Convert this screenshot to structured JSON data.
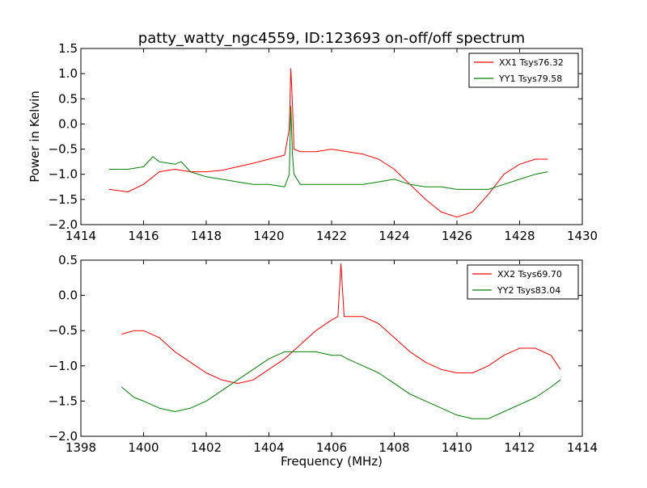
{
  "title": "patty_watty_ngc4559, ID:123693 on-off/off spectrum",
  "ylabel": "Power in Kelvin",
  "xlabel": "Frequency (MHz)",
  "colors": {
    "xx": "#ff0000",
    "yy": "#008000"
  },
  "chart_data": [
    {
      "type": "line",
      "xlim": [
        1414,
        1430
      ],
      "ylim": [
        -2.0,
        1.5
      ],
      "xticks": [
        1414,
        1416,
        1418,
        1420,
        1422,
        1424,
        1426,
        1428,
        1430
      ],
      "yticks": [
        -2.0,
        -1.5,
        -1.0,
        -0.5,
        0.0,
        0.5,
        1.0,
        1.5
      ],
      "xtick_labels": [
        "1414",
        "1416",
        "1418",
        "1420",
        "1422",
        "1424",
        "1426",
        "1428",
        "1430"
      ],
      "ytick_labels": [
        "−2.0",
        "−1.5",
        "−1.0",
        "−0.5",
        "0.0",
        "0.5",
        "1.0",
        "1.5"
      ],
      "legend_position": "top-right",
      "series": [
        {
          "name": "XX1 Tsys76.32",
          "color": "#ff0000",
          "x": [
            1414.9,
            1415.5,
            1416.0,
            1416.5,
            1417.0,
            1417.5,
            1418.0,
            1418.5,
            1419.0,
            1419.5,
            1420.0,
            1420.5,
            1420.65,
            1420.7,
            1420.75,
            1420.8,
            1421.0,
            1421.5,
            1422.0,
            1422.5,
            1423.0,
            1423.5,
            1424.0,
            1424.5,
            1425.0,
            1425.5,
            1426.0,
            1426.5,
            1427.0,
            1427.5,
            1428.0,
            1428.5,
            1428.9
          ],
          "y": [
            -1.3,
            -1.35,
            -1.2,
            -0.95,
            -0.9,
            -0.95,
            -0.95,
            -0.92,
            -0.85,
            -0.78,
            -0.7,
            -0.62,
            -0.1,
            1.1,
            0.4,
            -0.5,
            -0.55,
            -0.55,
            -0.5,
            -0.55,
            -0.6,
            -0.7,
            -0.9,
            -1.2,
            -1.5,
            -1.75,
            -1.85,
            -1.75,
            -1.4,
            -1.0,
            -0.8,
            -0.7,
            -0.7
          ]
        },
        {
          "name": "YY1 Tsys79.58",
          "color": "#008000",
          "x": [
            1414.9,
            1415.5,
            1416.0,
            1416.3,
            1416.5,
            1417.0,
            1417.2,
            1417.5,
            1418.0,
            1418.5,
            1419.0,
            1419.5,
            1420.0,
            1420.5,
            1420.65,
            1420.7,
            1420.75,
            1420.8,
            1421.0,
            1421.5,
            1422.0,
            1422.5,
            1423.0,
            1423.5,
            1424.0,
            1424.5,
            1425.0,
            1425.5,
            1426.0,
            1426.5,
            1427.0,
            1427.5,
            1428.0,
            1428.5,
            1428.9
          ],
          "y": [
            -0.9,
            -0.9,
            -0.85,
            -0.65,
            -0.75,
            -0.8,
            -0.75,
            -0.95,
            -1.05,
            -1.1,
            -1.15,
            -1.2,
            -1.2,
            -1.25,
            -1.0,
            0.35,
            -0.6,
            -1.0,
            -1.2,
            -1.2,
            -1.2,
            -1.2,
            -1.2,
            -1.15,
            -1.1,
            -1.2,
            -1.25,
            -1.25,
            -1.3,
            -1.3,
            -1.3,
            -1.2,
            -1.1,
            -1.0,
            -0.95
          ]
        }
      ]
    },
    {
      "type": "line",
      "xlim": [
        1398,
        1414
      ],
      "ylim": [
        -2.0,
        0.5
      ],
      "xticks": [
        1398,
        1400,
        1402,
        1404,
        1406,
        1408,
        1410,
        1412,
        1414
      ],
      "yticks": [
        -2.0,
        -1.5,
        -1.0,
        -0.5,
        0.0,
        0.5
      ],
      "xtick_labels": [
        "1398",
        "1400",
        "1402",
        "1404",
        "1406",
        "1408",
        "1410",
        "1412",
        "1414"
      ],
      "ytick_labels": [
        "−2.0",
        "−1.5",
        "−1.0",
        "−0.5",
        "0.0",
        "0.5"
      ],
      "legend_position": "top-right",
      "series": [
        {
          "name": "XX2 Tsys69.70",
          "color": "#ff0000",
          "x": [
            1399.3,
            1399.7,
            1400.0,
            1400.5,
            1401.0,
            1401.5,
            1402.0,
            1402.5,
            1403.0,
            1403.5,
            1404.0,
            1404.5,
            1405.0,
            1405.5,
            1406.0,
            1406.2,
            1406.3,
            1406.4,
            1406.5,
            1407.0,
            1407.5,
            1408.0,
            1408.5,
            1409.0,
            1409.5,
            1410.0,
            1410.5,
            1411.0,
            1411.5,
            1412.0,
            1412.5,
            1413.0,
            1413.3
          ],
          "y": [
            -0.55,
            -0.5,
            -0.5,
            -0.6,
            -0.8,
            -0.95,
            -1.1,
            -1.2,
            -1.25,
            -1.2,
            -1.05,
            -0.9,
            -0.7,
            -0.5,
            -0.35,
            -0.3,
            0.45,
            -0.3,
            -0.3,
            -0.3,
            -0.4,
            -0.6,
            -0.8,
            -0.95,
            -1.05,
            -1.1,
            -1.1,
            -1.0,
            -0.85,
            -0.75,
            -0.75,
            -0.85,
            -1.05
          ]
        },
        {
          "name": "YY2 Tsys83.04",
          "color": "#008000",
          "x": [
            1399.3,
            1399.7,
            1400.0,
            1400.5,
            1401.0,
            1401.5,
            1402.0,
            1402.5,
            1403.0,
            1403.5,
            1404.0,
            1404.5,
            1405.0,
            1405.5,
            1406.0,
            1406.3,
            1406.5,
            1407.0,
            1407.5,
            1408.0,
            1408.5,
            1409.0,
            1409.5,
            1410.0,
            1410.5,
            1411.0,
            1411.5,
            1412.0,
            1412.5,
            1413.0,
            1413.3
          ],
          "y": [
            -1.3,
            -1.45,
            -1.5,
            -1.6,
            -1.65,
            -1.6,
            -1.5,
            -1.35,
            -1.2,
            -1.05,
            -0.9,
            -0.8,
            -0.8,
            -0.8,
            -0.85,
            -0.85,
            -0.9,
            -1.0,
            -1.1,
            -1.25,
            -1.4,
            -1.5,
            -1.6,
            -1.7,
            -1.75,
            -1.75,
            -1.65,
            -1.55,
            -1.45,
            -1.3,
            -1.2
          ]
        }
      ]
    }
  ]
}
